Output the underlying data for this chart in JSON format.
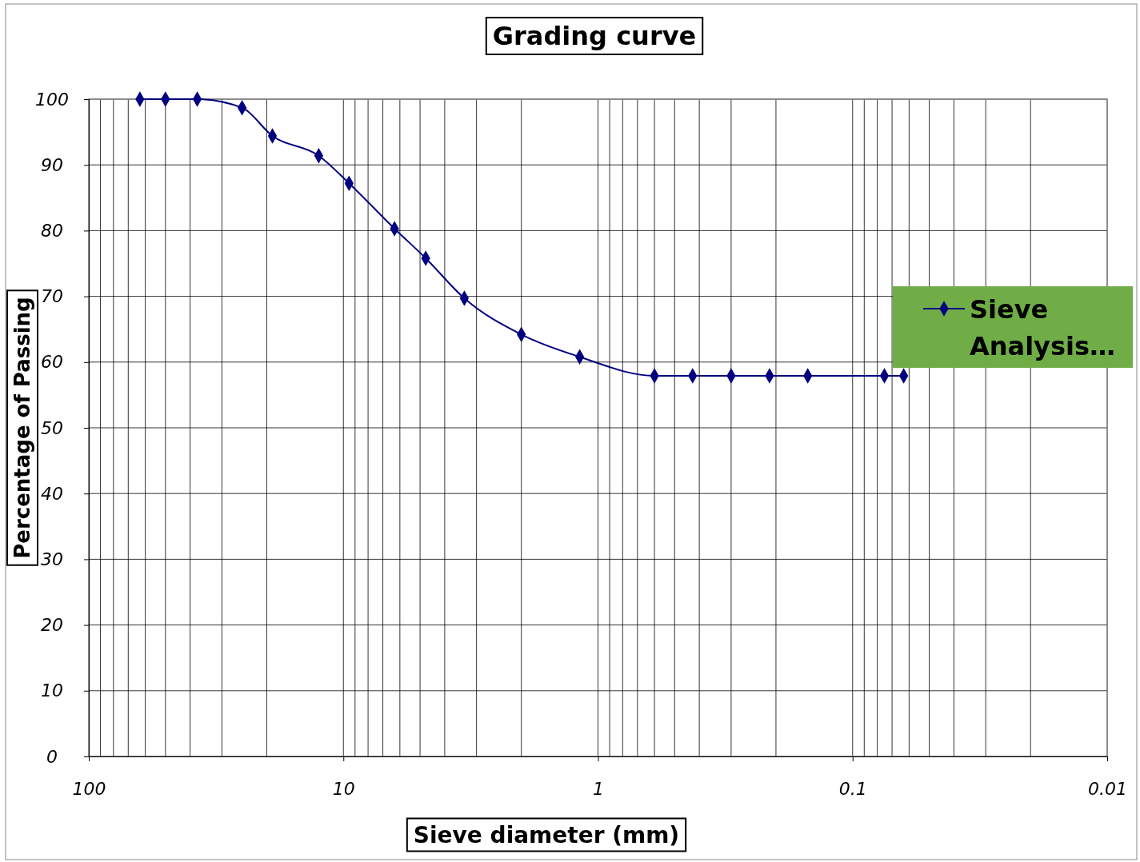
{
  "chart_data": {
    "type": "line",
    "title": "Grading curve",
    "xlabel": "Sieve diameter (mm)",
    "ylabel": "Percentage of Passing",
    "x": [
      63,
      50,
      37.5,
      25,
      19,
      12.5,
      9.5,
      6.3,
      4.75,
      3.35,
      2,
      1.18,
      0.6,
      0.425,
      0.3,
      0.212,
      0.15,
      0.075,
      0.063
    ],
    "series": [
      {
        "name": "Sieve Analysis…",
        "color": "#000080",
        "values": [
          100,
          100,
          100,
          98.7,
          94.4,
          91.4,
          87.2,
          80.3,
          75.8,
          69.7,
          64.2,
          60.8,
          57.9,
          57.9,
          57.9,
          57.9,
          57.9,
          57.9,
          57.9
        ]
      }
    ],
    "log": "x",
    "xlim": [
      100,
      0.01
    ],
    "xticks": [
      100,
      10,
      1,
      0.1,
      0.01
    ],
    "ylim": [
      0,
      100
    ],
    "yticks": [
      0,
      10,
      20,
      30,
      40,
      50,
      60,
      70,
      80,
      90,
      100
    ],
    "grid": true,
    "legend": "right",
    "marker": "diamond",
    "line_style": "solid"
  }
}
